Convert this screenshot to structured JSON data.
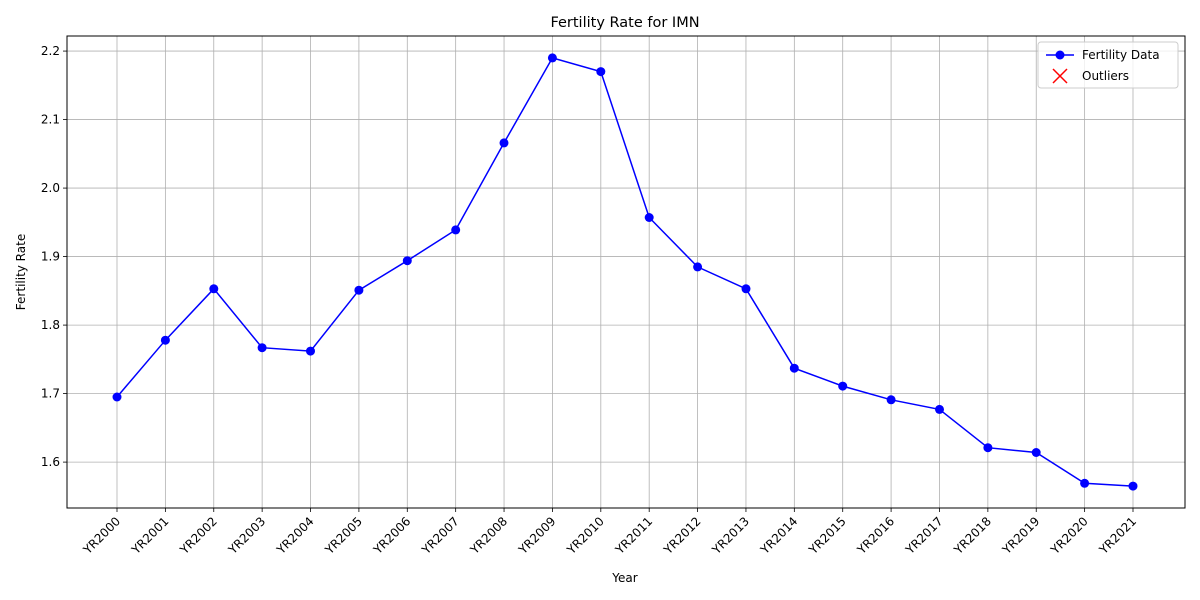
{
  "chart_data": {
    "type": "line",
    "title": "Fertility Rate for IMN",
    "xlabel": "Year",
    "ylabel": "Fertility Rate",
    "categories": [
      "YR2000",
      "YR2001",
      "YR2002",
      "YR2003",
      "YR2004",
      "YR2005",
      "YR2006",
      "YR2007",
      "YR2008",
      "YR2009",
      "YR2010",
      "YR2011",
      "YR2012",
      "YR2013",
      "YR2014",
      "YR2015",
      "YR2016",
      "YR2017",
      "YR2018",
      "YR2019",
      "YR2020",
      "YR2021"
    ],
    "series": [
      {
        "name": "Fertility Data",
        "color": "#0000ff",
        "values": [
          1.695,
          1.778,
          1.853,
          1.767,
          1.762,
          1.851,
          1.894,
          1.939,
          2.066,
          2.19,
          2.17,
          1.957,
          1.885,
          1.853,
          1.737,
          1.711,
          1.691,
          1.677,
          1.621,
          1.614,
          1.569,
          1.565
        ]
      }
    ],
    "outliers": {
      "name": "Outliers",
      "color": "#ff0000",
      "values": []
    },
    "ylim": [
      1.533,
      2.222
    ],
    "yticks": [
      "1.6",
      "1.7",
      "1.8",
      "1.9",
      "2.0",
      "2.1",
      "2.2"
    ],
    "grid": true,
    "legend_position": "top-right"
  }
}
